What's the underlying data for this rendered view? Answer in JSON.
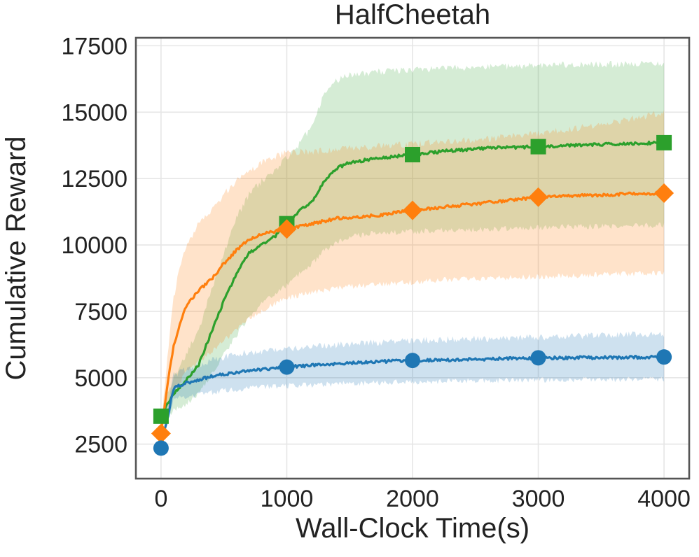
{
  "chart_data": {
    "type": "line",
    "title": "HalfCheetah",
    "xlabel": "Wall-Clock Time(s)",
    "ylabel": "Cumulative Reward",
    "xlim": [
      -200,
      4200
    ],
    "ylim": [
      1200,
      17800
    ],
    "xticks": [
      0,
      1000,
      2000,
      3000,
      4000
    ],
    "yticks": [
      2500,
      5000,
      7500,
      10000,
      12500,
      15000,
      17500
    ],
    "grid": true,
    "legend": "none",
    "series": [
      {
        "name": "green-square-series",
        "color": "#2ca02c",
        "marker": "square",
        "x": [
          0,
          100,
          200,
          300,
          400,
          500,
          600,
          700,
          800,
          900,
          1000,
          1100,
          1200,
          1300,
          1400,
          1500,
          1700,
          2000,
          2300,
          2600,
          3000,
          3300,
          3600,
          4000
        ],
        "y": [
          3550,
          4400,
          4900,
          5500,
          6700,
          7900,
          8900,
          9700,
          10000,
          10300,
          10800,
          11300,
          11600,
          12400,
          12900,
          13100,
          13250,
          13400,
          13550,
          13650,
          13700,
          13750,
          13800,
          13850
        ],
        "lower": [
          3300,
          3800,
          4000,
          4400,
          5100,
          5900,
          6600,
          7300,
          7800,
          8100,
          8500,
          8900,
          9300,
          9800,
          10100,
          10300,
          10450,
          10500,
          10550,
          10600,
          10650,
          10700,
          10700,
          10750
        ],
        "upper": [
          3700,
          5000,
          5900,
          6800,
          8300,
          9700,
          11000,
          11900,
          12400,
          12800,
          13300,
          13800,
          14500,
          15700,
          16200,
          16400,
          16500,
          16600,
          16650,
          16700,
          16750,
          16800,
          16800,
          16850
        ],
        "markers": [
          {
            "x": 0,
            "y": 3550
          },
          {
            "x": 1000,
            "y": 10800
          },
          {
            "x": 2000,
            "y": 13400
          },
          {
            "x": 3000,
            "y": 13700
          },
          {
            "x": 4000,
            "y": 13850
          }
        ]
      },
      {
        "name": "orange-diamond-series",
        "color": "#ff7f0e",
        "marker": "diamond",
        "x": [
          0,
          50,
          100,
          150,
          200,
          300,
          400,
          500,
          600,
          700,
          800,
          900,
          1000,
          1200,
          1400,
          1700,
          2000,
          2300,
          2600,
          3000,
          3300,
          3600,
          4000
        ],
        "y": [
          2900,
          4700,
          6200,
          7000,
          7700,
          8300,
          8700,
          9300,
          9800,
          10200,
          10400,
          10500,
          10600,
          10800,
          11000,
          11100,
          11300,
          11450,
          11600,
          11800,
          11850,
          11900,
          11950
        ],
        "lower": [
          2700,
          3800,
          4400,
          4800,
          5200,
          5600,
          6000,
          6400,
          6800,
          7200,
          7500,
          7800,
          8000,
          8200,
          8400,
          8500,
          8600,
          8700,
          8750,
          8800,
          8850,
          8900,
          8950
        ],
        "upper": [
          3100,
          5800,
          8000,
          9200,
          10000,
          10800,
          11300,
          11900,
          12400,
          12800,
          13100,
          13300,
          13500,
          13500,
          13600,
          13700,
          13800,
          13900,
          14000,
          14200,
          14400,
          14600,
          15000
        ],
        "markers": [
          {
            "x": 0,
            "y": 2900
          },
          {
            "x": 1000,
            "y": 10600
          },
          {
            "x": 2000,
            "y": 11300
          },
          {
            "x": 3000,
            "y": 11800
          },
          {
            "x": 4000,
            "y": 11950
          }
        ]
      },
      {
        "name": "blue-circle-series",
        "color": "#1f77b4",
        "marker": "circle",
        "x": [
          0,
          100,
          200,
          400,
          600,
          800,
          1000,
          1300,
          1600,
          2000,
          2400,
          2800,
          3200,
          3600,
          4000
        ],
        "y": [
          2350,
          4600,
          4800,
          5050,
          5200,
          5300,
          5400,
          5500,
          5580,
          5650,
          5680,
          5720,
          5750,
          5760,
          5780
        ],
        "lower": [
          2250,
          4200,
          4300,
          4450,
          4550,
          4650,
          4700,
          4750,
          4800,
          4850,
          4880,
          4900,
          4920,
          4930,
          4950
        ],
        "upper": [
          2500,
          5100,
          5300,
          5650,
          5900,
          6000,
          6100,
          6200,
          6300,
          6400,
          6450,
          6500,
          6550,
          6600,
          6650
        ],
        "markers": [
          {
            "x": 0,
            "y": 2350
          },
          {
            "x": 1000,
            "y": 5400
          },
          {
            "x": 2000,
            "y": 5650
          },
          {
            "x": 3000,
            "y": 5750
          },
          {
            "x": 4000,
            "y": 5780
          }
        ]
      }
    ]
  }
}
